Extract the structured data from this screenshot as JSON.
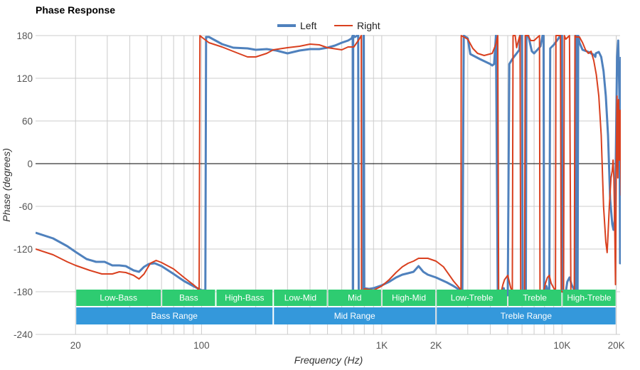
{
  "chart_data": {
    "type": "line",
    "title": "Phase Response",
    "xlabel": "Frequency (Hz)",
    "ylabel": "Phase (degrees)",
    "x_scale": "log",
    "xlim": [
      12,
      21000
    ],
    "ylim": [
      -240,
      180
    ],
    "y_ticks": [
      "180",
      "120",
      "60",
      "0",
      "-60",
      "-120",
      "-180",
      "-240"
    ],
    "y_tick_values": [
      180,
      120,
      60,
      0,
      -60,
      -120,
      -180,
      -240
    ],
    "x_ticks": [
      "20",
      "100",
      "1K",
      "2K",
      "10K",
      "20K"
    ],
    "x_tick_values": [
      20,
      100,
      1000,
      2000,
      10000,
      20000
    ],
    "grid": true,
    "legend_position": "top-center",
    "series": [
      {
        "name": "Left",
        "color": "#4f81bd",
        "points": [
          [
            12,
            -97
          ],
          [
            15,
            -105
          ],
          [
            18,
            -116
          ],
          [
            20,
            -124
          ],
          [
            23,
            -134
          ],
          [
            26,
            -138
          ],
          [
            29,
            -138
          ],
          [
            32,
            -143
          ],
          [
            35,
            -143
          ],
          [
            38,
            -144
          ],
          [
            42,
            -150
          ],
          [
            45,
            -152
          ],
          [
            48,
            -145
          ],
          [
            51,
            -141
          ],
          [
            55,
            -140
          ],
          [
            60,
            -144
          ],
          [
            70,
            -155
          ],
          [
            80,
            -165
          ],
          [
            90,
            -172
          ],
          [
            100,
            -178
          ],
          [
            105,
            -178
          ],
          [
            106,
            178
          ],
          [
            110,
            178
          ],
          [
            130,
            168
          ],
          [
            150,
            163
          ],
          [
            180,
            162
          ],
          [
            200,
            160
          ],
          [
            230,
            161
          ],
          [
            260,
            159
          ],
          [
            300,
            155
          ],
          [
            350,
            159
          ],
          [
            400,
            161
          ],
          [
            450,
            161
          ],
          [
            500,
            163
          ],
          [
            550,
            166
          ],
          [
            600,
            170
          ],
          [
            650,
            173
          ],
          [
            680,
            176
          ],
          [
            690,
            180
          ],
          [
            691,
            -180
          ],
          [
            693,
            -180
          ],
          [
            694,
            180
          ],
          [
            700,
            180
          ],
          [
            710,
            178
          ],
          [
            730,
            180
          ],
          [
            740,
            180
          ],
          [
            745,
            -180
          ],
          [
            760,
            -180
          ],
          [
            770,
            -182
          ],
          [
            790,
            -182
          ],
          [
            792,
            180
          ],
          [
            795,
            180
          ],
          [
            800,
            -175
          ],
          [
            850,
            -176
          ],
          [
            900,
            -175
          ],
          [
            1000,
            -171
          ],
          [
            1100,
            -166
          ],
          [
            1200,
            -160
          ],
          [
            1300,
            -156
          ],
          [
            1400,
            -154
          ],
          [
            1500,
            -152
          ],
          [
            1600,
            -144
          ],
          [
            1700,
            -152
          ],
          [
            1800,
            -156
          ],
          [
            2000,
            -160
          ],
          [
            2300,
            -167
          ],
          [
            2500,
            -172
          ],
          [
            2800,
            -180
          ],
          [
            2850,
            180
          ],
          [
            3000,
            176
          ],
          [
            3100,
            154
          ],
          [
            3500,
            147
          ],
          [
            4000,
            140
          ],
          [
            4100,
            138
          ],
          [
            4200,
            140
          ],
          [
            4300,
            180
          ],
          [
            4400,
            -180
          ],
          [
            4700,
            -180
          ],
          [
            4750,
            -175
          ],
          [
            4800,
            -180
          ],
          [
            5000,
            -185
          ],
          [
            5100,
            140
          ],
          [
            5300,
            147
          ],
          [
            5800,
            160
          ],
          [
            5850,
            180
          ],
          [
            6000,
            180
          ],
          [
            6050,
            -180
          ],
          [
            6300,
            -180
          ],
          [
            6350,
            180
          ],
          [
            6500,
            180
          ],
          [
            6800,
            158
          ],
          [
            7000,
            155
          ],
          [
            7300,
            160
          ],
          [
            7600,
            165
          ],
          [
            7800,
            180
          ],
          [
            7900,
            180
          ],
          [
            7950,
            -180
          ],
          [
            8100,
            -180
          ],
          [
            8200,
            -172
          ],
          [
            8400,
            -180
          ],
          [
            8500,
            -185
          ],
          [
            8600,
            162
          ],
          [
            9000,
            167
          ],
          [
            9500,
            175
          ],
          [
            9800,
            180
          ],
          [
            10000,
            180
          ],
          [
            10050,
            -180
          ],
          [
            10500,
            -180
          ],
          [
            10700,
            -166
          ],
          [
            11000,
            -160
          ],
          [
            11300,
            -170
          ],
          [
            11800,
            -180
          ],
          [
            11900,
            180
          ],
          [
            12000,
            180
          ],
          [
            12100,
            -180
          ],
          [
            12200,
            -185
          ],
          [
            12300,
            180
          ],
          [
            12500,
            170
          ],
          [
            13000,
            160
          ],
          [
            14000,
            157
          ],
          [
            15000,
            153
          ],
          [
            15300,
            150
          ],
          [
            15400,
            155
          ],
          [
            16000,
            157
          ],
          [
            16500,
            150
          ],
          [
            17000,
            130
          ],
          [
            17500,
            95
          ],
          [
            18000,
            40
          ],
          [
            18500,
            -50
          ],
          [
            19000,
            -85
          ],
          [
            19300,
            -93
          ],
          [
            19600,
            -80
          ],
          [
            19800,
            -30
          ],
          [
            20000,
            60
          ],
          [
            20200,
            150
          ],
          [
            20500,
            173
          ],
          [
            20800,
            100
          ],
          [
            21000,
            -140
          ],
          [
            21200,
            150
          ]
        ]
      },
      {
        "name": "Right",
        "color": "#d9401f",
        "points": [
          [
            12,
            -120
          ],
          [
            15,
            -128
          ],
          [
            18,
            -138
          ],
          [
            20,
            -143
          ],
          [
            24,
            -150
          ],
          [
            28,
            -155
          ],
          [
            32,
            -155
          ],
          [
            35,
            -152
          ],
          [
            38,
            -153
          ],
          [
            42,
            -157
          ],
          [
            45,
            -162
          ],
          [
            48,
            -155
          ],
          [
            52,
            -140
          ],
          [
            56,
            -136
          ],
          [
            60,
            -139
          ],
          [
            70,
            -148
          ],
          [
            80,
            -160
          ],
          [
            90,
            -170
          ],
          [
            95,
            -175
          ],
          [
            97,
            -180
          ],
          [
            98,
            180
          ],
          [
            100,
            178
          ],
          [
            110,
            170
          ],
          [
            130,
            164
          ],
          [
            160,
            155
          ],
          [
            180,
            150
          ],
          [
            200,
            150
          ],
          [
            230,
            155
          ],
          [
            250,
            160
          ],
          [
            300,
            163
          ],
          [
            350,
            165
          ],
          [
            400,
            168
          ],
          [
            450,
            167
          ],
          [
            500,
            163
          ],
          [
            600,
            160
          ],
          [
            650,
            164
          ],
          [
            700,
            164
          ],
          [
            750,
            175
          ],
          [
            770,
            180
          ],
          [
            772,
            -180
          ],
          [
            790,
            -180
          ],
          [
            800,
            -176
          ],
          [
            900,
            -178
          ],
          [
            1000,
            -172
          ],
          [
            1100,
            -163
          ],
          [
            1200,
            -153
          ],
          [
            1300,
            -145
          ],
          [
            1400,
            -140
          ],
          [
            1500,
            -137
          ],
          [
            1600,
            -133
          ],
          [
            1700,
            -133
          ],
          [
            1800,
            -133
          ],
          [
            2000,
            -137
          ],
          [
            2200,
            -145
          ],
          [
            2500,
            -165
          ],
          [
            2700,
            -175
          ],
          [
            2750,
            -180
          ],
          [
            2760,
            180
          ],
          [
            3000,
            175
          ],
          [
            3200,
            162
          ],
          [
            3400,
            155
          ],
          [
            3700,
            152
          ],
          [
            4100,
            155
          ],
          [
            4300,
            168
          ],
          [
            4400,
            180
          ],
          [
            4450,
            -180
          ],
          [
            4600,
            -180
          ],
          [
            4700,
            -170
          ],
          [
            4800,
            -163
          ],
          [
            5000,
            -157
          ],
          [
            5200,
            -175
          ],
          [
            5300,
            -180
          ],
          [
            5350,
            180
          ],
          [
            5500,
            180
          ],
          [
            5600,
            163
          ],
          [
            5800,
            178
          ],
          [
            5850,
            180
          ],
          [
            5900,
            -180
          ],
          [
            6200,
            -180
          ],
          [
            6250,
            180
          ],
          [
            6500,
            180
          ],
          [
            6700,
            173
          ],
          [
            7000,
            173
          ],
          [
            7200,
            176
          ],
          [
            7500,
            180
          ],
          [
            7550,
            -180
          ],
          [
            7900,
            -180
          ],
          [
            8100,
            -168
          ],
          [
            8300,
            -160
          ],
          [
            8500,
            -157
          ],
          [
            8700,
            -168
          ],
          [
            9000,
            -175
          ],
          [
            9200,
            -180
          ],
          [
            9250,
            180
          ],
          [
            9500,
            180
          ],
          [
            9800,
            180
          ],
          [
            9900,
            -180
          ],
          [
            10200,
            -180
          ],
          [
            10300,
            180
          ],
          [
            10500,
            175
          ],
          [
            11000,
            180
          ],
          [
            11200,
            -180
          ],
          [
            11700,
            -180
          ],
          [
            11800,
            180
          ],
          [
            12000,
            178
          ],
          [
            12500,
            178
          ],
          [
            13000,
            170
          ],
          [
            13500,
            160
          ],
          [
            14000,
            155
          ],
          [
            14500,
            158
          ],
          [
            15000,
            145
          ],
          [
            15500,
            125
          ],
          [
            16000,
            95
          ],
          [
            16500,
            40
          ],
          [
            17000,
            -60
          ],
          [
            17500,
            -110
          ],
          [
            17800,
            -125
          ],
          [
            18000,
            -100
          ],
          [
            18300,
            -60
          ],
          [
            18700,
            -20
          ],
          [
            19000,
            -10
          ],
          [
            19200,
            5
          ],
          [
            19400,
            -20
          ],
          [
            19600,
            -85
          ],
          [
            19800,
            -170
          ],
          [
            20000,
            -5
          ],
          [
            20200,
            95
          ],
          [
            20400,
            -20
          ],
          [
            20600,
            90
          ],
          [
            20800,
            5
          ],
          [
            21000,
            75
          ],
          [
            21300,
            -45
          ]
        ]
      }
    ],
    "zero_line": 0,
    "bands": {
      "row1": [
        {
          "label": "Low-Bass",
          "from": 20,
          "to": 60
        },
        {
          "label": "Bass",
          "from": 60,
          "to": 120
        },
        {
          "label": "High-Bass",
          "from": 120,
          "to": 250
        },
        {
          "label": "Low-Mid",
          "from": 250,
          "to": 500
        },
        {
          "label": "Mid",
          "from": 500,
          "to": 1000
        },
        {
          "label": "High-Mid",
          "from": 1000,
          "to": 2000
        },
        {
          "label": "Low-Treble",
          "from": 2000,
          "to": 5000
        },
        {
          "label": "Treble",
          "from": 5000,
          "to": 10000
        },
        {
          "label": "High-Treble",
          "from": 10000,
          "to": 20000
        }
      ],
      "row2": [
        {
          "label": "Bass Range",
          "from": 20,
          "to": 250
        },
        {
          "label": "Mid Range",
          "from": 250,
          "to": 2000
        },
        {
          "label": "Treble Range",
          "from": 2000,
          "to": 20000
        }
      ],
      "row1_color": "#2ecc71",
      "row2_color": "#3498db"
    }
  }
}
